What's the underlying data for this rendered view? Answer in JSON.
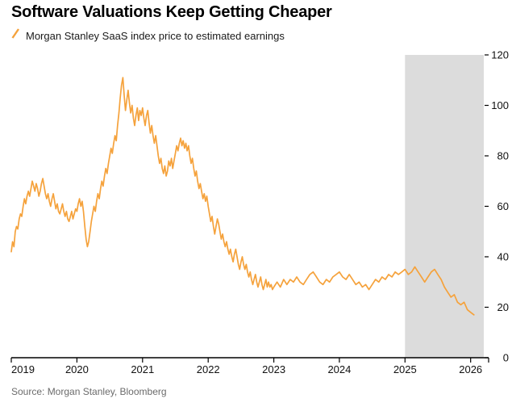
{
  "title": "Software Valuations Keep Getting Cheaper",
  "legend": {
    "label": "Morgan Stanley SaaS index price to estimated earnings",
    "color": "#F5A23C"
  },
  "source": "Source: Morgan Stanley, Bloomberg",
  "chart_data": {
    "type": "line",
    "title": "Software Valuations Keep Getting Cheaper",
    "xlabel": "",
    "ylabel": "",
    "grid": false,
    "legend_position": "top-left",
    "y_axis_side": "right",
    "xlim": [
      2019,
      2026.2
    ],
    "ylim": [
      0,
      120
    ],
    "x_ticks": [
      2019,
      2020,
      2021,
      2022,
      2023,
      2024,
      2025,
      2026
    ],
    "x_tick_labels": [
      "2019",
      "2020",
      "2021",
      "2022",
      "2023",
      "2024",
      "2025",
      "2026"
    ],
    "y_ticks": [
      0,
      20,
      40,
      60,
      80,
      100,
      120
    ],
    "shaded_region": {
      "x_start": 2025,
      "x_end": 2026.2,
      "color": "#DCDCDC"
    },
    "series": [
      {
        "name": "Morgan Stanley SaaS index price to estimated earnings",
        "color": "#F5A23C",
        "points": [
          [
            2019.0,
            42
          ],
          [
            2019.02,
            46
          ],
          [
            2019.04,
            44
          ],
          [
            2019.06,
            50
          ],
          [
            2019.08,
            52
          ],
          [
            2019.1,
            51
          ],
          [
            2019.12,
            55
          ],
          [
            2019.14,
            57
          ],
          [
            2019.16,
            56
          ],
          [
            2019.18,
            60
          ],
          [
            2019.2,
            63
          ],
          [
            2019.22,
            61
          ],
          [
            2019.24,
            64
          ],
          [
            2019.26,
            66
          ],
          [
            2019.28,
            64
          ],
          [
            2019.3,
            67
          ],
          [
            2019.32,
            70
          ],
          [
            2019.34,
            68
          ],
          [
            2019.36,
            66
          ],
          [
            2019.38,
            69
          ],
          [
            2019.4,
            67
          ],
          [
            2019.42,
            64
          ],
          [
            2019.44,
            66
          ],
          [
            2019.46,
            69
          ],
          [
            2019.48,
            71
          ],
          [
            2019.5,
            68
          ],
          [
            2019.52,
            65
          ],
          [
            2019.54,
            63
          ],
          [
            2019.56,
            65
          ],
          [
            2019.58,
            62
          ],
          [
            2019.6,
            60
          ],
          [
            2019.62,
            63
          ],
          [
            2019.64,
            65
          ],
          [
            2019.66,
            62
          ],
          [
            2019.68,
            59
          ],
          [
            2019.7,
            61
          ],
          [
            2019.72,
            58
          ],
          [
            2019.74,
            57
          ],
          [
            2019.76,
            59
          ],
          [
            2019.78,
            61
          ],
          [
            2019.8,
            58
          ],
          [
            2019.82,
            56
          ],
          [
            2019.84,
            58
          ],
          [
            2019.86,
            55
          ],
          [
            2019.88,
            54
          ],
          [
            2019.9,
            56
          ],
          [
            2019.92,
            58
          ],
          [
            2019.94,
            55
          ],
          [
            2019.96,
            57
          ],
          [
            2019.98,
            59
          ],
          [
            2020.0,
            58
          ],
          [
            2020.02,
            61
          ],
          [
            2020.04,
            63
          ],
          [
            2020.06,
            60
          ],
          [
            2020.08,
            62
          ],
          [
            2020.1,
            58
          ],
          [
            2020.12,
            52
          ],
          [
            2020.14,
            47
          ],
          [
            2020.16,
            44
          ],
          [
            2020.18,
            46
          ],
          [
            2020.2,
            50
          ],
          [
            2020.22,
            54
          ],
          [
            2020.24,
            57
          ],
          [
            2020.26,
            60
          ],
          [
            2020.28,
            58
          ],
          [
            2020.3,
            62
          ],
          [
            2020.32,
            65
          ],
          [
            2020.34,
            63
          ],
          [
            2020.36,
            67
          ],
          [
            2020.38,
            70
          ],
          [
            2020.4,
            68
          ],
          [
            2020.42,
            72
          ],
          [
            2020.44,
            75
          ],
          [
            2020.46,
            73
          ],
          [
            2020.48,
            77
          ],
          [
            2020.5,
            80
          ],
          [
            2020.52,
            83
          ],
          [
            2020.54,
            81
          ],
          [
            2020.56,
            85
          ],
          [
            2020.58,
            88
          ],
          [
            2020.6,
            86
          ],
          [
            2020.62,
            92
          ],
          [
            2020.64,
            97
          ],
          [
            2020.66,
            103
          ],
          [
            2020.68,
            108
          ],
          [
            2020.7,
            111
          ],
          [
            2020.72,
            104
          ],
          [
            2020.74,
            98
          ],
          [
            2020.76,
            102
          ],
          [
            2020.78,
            106
          ],
          [
            2020.8,
            101
          ],
          [
            2020.82,
            97
          ],
          [
            2020.84,
            100
          ],
          [
            2020.86,
            95
          ],
          [
            2020.88,
            92
          ],
          [
            2020.9,
            96
          ],
          [
            2020.92,
            99
          ],
          [
            2020.94,
            94
          ],
          [
            2020.96,
            98
          ],
          [
            2020.98,
            96
          ],
          [
            2021.0,
            99
          ],
          [
            2021.02,
            95
          ],
          [
            2021.04,
            92
          ],
          [
            2021.06,
            96
          ],
          [
            2021.08,
            98
          ],
          [
            2021.1,
            93
          ],
          [
            2021.12,
            89
          ],
          [
            2021.14,
            92
          ],
          [
            2021.16,
            88
          ],
          [
            2021.18,
            85
          ],
          [
            2021.2,
            88
          ],
          [
            2021.22,
            84
          ],
          [
            2021.24,
            80
          ],
          [
            2021.26,
            77
          ],
          [
            2021.28,
            79
          ],
          [
            2021.3,
            75
          ],
          [
            2021.32,
            73
          ],
          [
            2021.34,
            76
          ],
          [
            2021.36,
            72
          ],
          [
            2021.38,
            74
          ],
          [
            2021.4,
            78
          ],
          [
            2021.42,
            76
          ],
          [
            2021.44,
            79
          ],
          [
            2021.46,
            75
          ],
          [
            2021.48,
            78
          ],
          [
            2021.5,
            81
          ],
          [
            2021.52,
            84
          ],
          [
            2021.54,
            82
          ],
          [
            2021.56,
            85
          ],
          [
            2021.58,
            87
          ],
          [
            2021.6,
            84
          ],
          [
            2021.62,
            86
          ],
          [
            2021.64,
            83
          ],
          [
            2021.66,
            85
          ],
          [
            2021.68,
            82
          ],
          [
            2021.7,
            84
          ],
          [
            2021.72,
            80
          ],
          [
            2021.74,
            77
          ],
          [
            2021.76,
            79
          ],
          [
            2021.78,
            75
          ],
          [
            2021.8,
            72
          ],
          [
            2021.82,
            74
          ],
          [
            2021.84,
            70
          ],
          [
            2021.86,
            67
          ],
          [
            2021.88,
            69
          ],
          [
            2021.9,
            66
          ],
          [
            2021.92,
            63
          ],
          [
            2021.94,
            65
          ],
          [
            2021.96,
            62
          ],
          [
            2021.98,
            64
          ],
          [
            2022.0,
            60
          ],
          [
            2022.02,
            57
          ],
          [
            2022.04,
            54
          ],
          [
            2022.06,
            56
          ],
          [
            2022.08,
            52
          ],
          [
            2022.1,
            49
          ],
          [
            2022.12,
            52
          ],
          [
            2022.14,
            55
          ],
          [
            2022.16,
            53
          ],
          [
            2022.18,
            50
          ],
          [
            2022.2,
            47
          ],
          [
            2022.22,
            49
          ],
          [
            2022.24,
            46
          ],
          [
            2022.26,
            44
          ],
          [
            2022.28,
            46
          ],
          [
            2022.3,
            43
          ],
          [
            2022.32,
            41
          ],
          [
            2022.34,
            43
          ],
          [
            2022.36,
            40
          ],
          [
            2022.38,
            38
          ],
          [
            2022.4,
            41
          ],
          [
            2022.42,
            43
          ],
          [
            2022.44,
            40
          ],
          [
            2022.46,
            37
          ],
          [
            2022.48,
            35
          ],
          [
            2022.5,
            38
          ],
          [
            2022.52,
            40
          ],
          [
            2022.54,
            37
          ],
          [
            2022.56,
            35
          ],
          [
            2022.58,
            37
          ],
          [
            2022.6,
            34
          ],
          [
            2022.62,
            32
          ],
          [
            2022.64,
            34
          ],
          [
            2022.66,
            31
          ],
          [
            2022.68,
            29
          ],
          [
            2022.7,
            31
          ],
          [
            2022.72,
            33
          ],
          [
            2022.74,
            30
          ],
          [
            2022.76,
            28
          ],
          [
            2022.78,
            30
          ],
          [
            2022.8,
            32
          ],
          [
            2022.82,
            29
          ],
          [
            2022.84,
            27
          ],
          [
            2022.86,
            29
          ],
          [
            2022.88,
            31
          ],
          [
            2022.9,
            28
          ],
          [
            2022.92,
            30
          ],
          [
            2022.94,
            28
          ],
          [
            2022.96,
            29
          ],
          [
            2022.98,
            27
          ],
          [
            2023.0,
            28
          ],
          [
            2023.05,
            30
          ],
          [
            2023.1,
            28
          ],
          [
            2023.15,
            31
          ],
          [
            2023.2,
            29
          ],
          [
            2023.25,
            31
          ],
          [
            2023.3,
            30
          ],
          [
            2023.35,
            32
          ],
          [
            2023.4,
            30
          ],
          [
            2023.45,
            29
          ],
          [
            2023.5,
            31
          ],
          [
            2023.55,
            33
          ],
          [
            2023.6,
            34
          ],
          [
            2023.65,
            32
          ],
          [
            2023.7,
            30
          ],
          [
            2023.75,
            29
          ],
          [
            2023.8,
            31
          ],
          [
            2023.85,
            30
          ],
          [
            2023.9,
            32
          ],
          [
            2023.95,
            33
          ],
          [
            2024.0,
            34
          ],
          [
            2024.05,
            32
          ],
          [
            2024.1,
            31
          ],
          [
            2024.15,
            33
          ],
          [
            2024.2,
            31
          ],
          [
            2024.25,
            29
          ],
          [
            2024.3,
            30
          ],
          [
            2024.35,
            28
          ],
          [
            2024.4,
            29
          ],
          [
            2024.45,
            27
          ],
          [
            2024.5,
            29
          ],
          [
            2024.55,
            31
          ],
          [
            2024.6,
            30
          ],
          [
            2024.65,
            32
          ],
          [
            2024.7,
            31
          ],
          [
            2024.75,
            33
          ],
          [
            2024.8,
            32
          ],
          [
            2024.85,
            34
          ],
          [
            2024.9,
            33
          ],
          [
            2024.95,
            34
          ],
          [
            2025.0,
            35
          ],
          [
            2025.05,
            33
          ],
          [
            2025.1,
            34
          ],
          [
            2025.15,
            36
          ],
          [
            2025.2,
            34
          ],
          [
            2025.25,
            32
          ],
          [
            2025.3,
            30
          ],
          [
            2025.35,
            32
          ],
          [
            2025.4,
            34
          ],
          [
            2025.45,
            35
          ],
          [
            2025.5,
            33
          ],
          [
            2025.55,
            31
          ],
          [
            2025.6,
            28
          ],
          [
            2025.65,
            26
          ],
          [
            2025.7,
            24
          ],
          [
            2025.75,
            25
          ],
          [
            2025.8,
            22
          ],
          [
            2025.85,
            21
          ],
          [
            2025.9,
            22
          ],
          [
            2025.95,
            19
          ],
          [
            2026.0,
            18
          ],
          [
            2026.05,
            17
          ]
        ]
      }
    ]
  }
}
